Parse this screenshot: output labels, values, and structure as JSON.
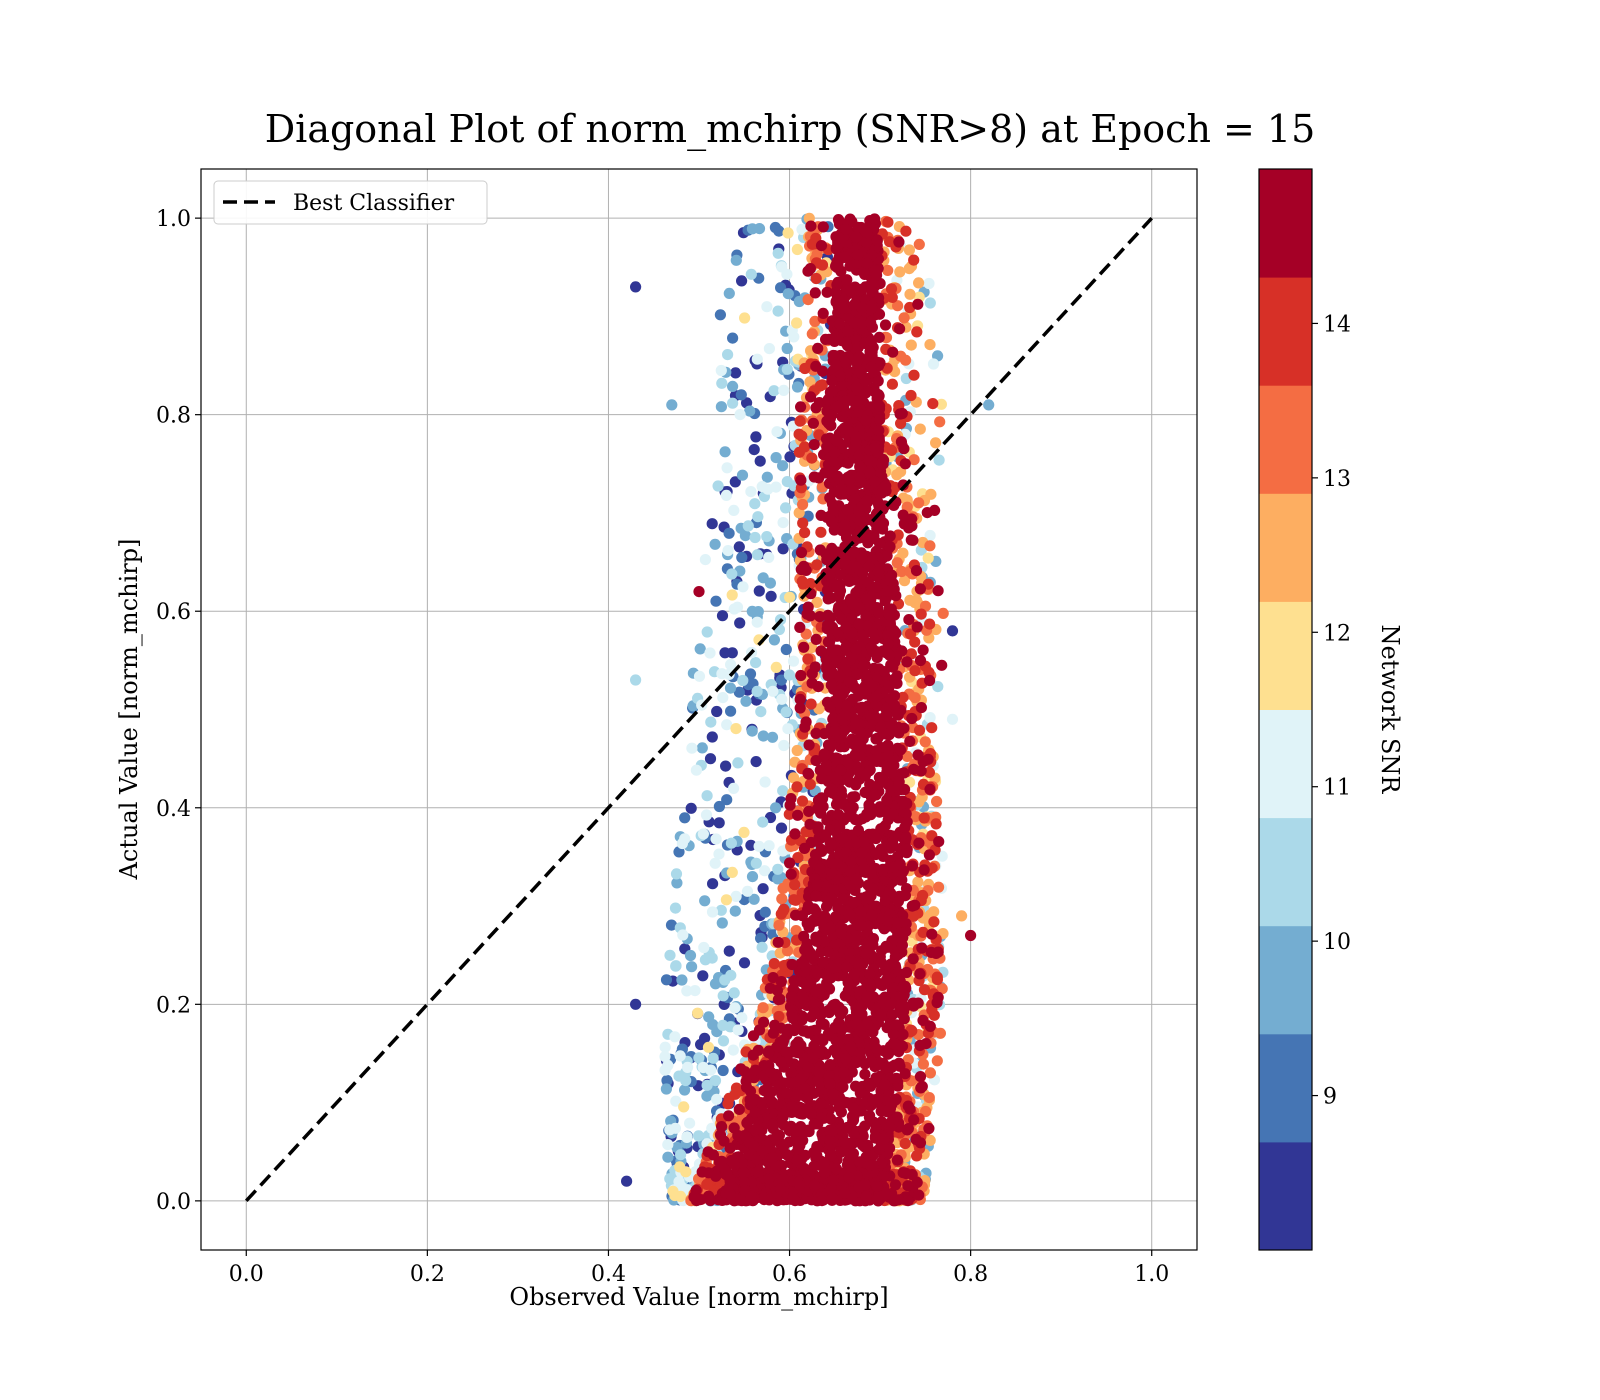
{
  "chart_data": {
    "type": "scatter",
    "title": "Diagonal Plot of norm_mchirp (SNR>8) at Epoch = 15",
    "xlabel": "Observed Value [norm_mchirp]",
    "ylabel": "Actual Value [norm_mchirp]",
    "xlim": [
      -0.05,
      1.05
    ],
    "ylim": [
      -0.05,
      1.05
    ],
    "xticks": [
      "0.0",
      "0.2",
      "0.4",
      "0.6",
      "0.8",
      "1.0"
    ],
    "yticks": [
      "0.0",
      "0.2",
      "0.4",
      "0.6",
      "0.8",
      "1.0"
    ],
    "grid": true,
    "legend": {
      "location": "upper-left",
      "entries": [
        {
          "label": "Best Classifier",
          "style": "black dashed line"
        }
      ]
    },
    "reference_line": {
      "label": "Best Classifier",
      "x": [
        0.0,
        1.0
      ],
      "y": [
        0.0,
        1.0
      ],
      "color": "#000000",
      "dash": "dashed"
    },
    "colorbar": {
      "label": "Network SNR",
      "colormap": "RdYlBu_r (discrete, 10 levels)",
      "range": [
        8,
        15
      ],
      "ticks": [
        "9",
        "10",
        "11",
        "12",
        "13",
        "14"
      ],
      "levels": [
        "#313695",
        "#4575b4",
        "#74add1",
        "#abd9e9",
        "#e0f3f8",
        "#fee090",
        "#fdae61",
        "#f46d43",
        "#d73027",
        "#a50026"
      ]
    },
    "point_cloud_density": [
      {
        "y": 0.0,
        "x_range": [
          0.47,
          0.75
        ],
        "core": [
          0.52,
          0.7
        ]
      },
      {
        "y": 0.1,
        "x_range": [
          0.46,
          0.76
        ],
        "core": [
          0.56,
          0.72
        ]
      },
      {
        "y": 0.2,
        "x_range": [
          0.46,
          0.77
        ],
        "core": [
          0.6,
          0.73
        ]
      },
      {
        "y": 0.3,
        "x_range": [
          0.47,
          0.77
        ],
        "core": [
          0.62,
          0.73
        ]
      },
      {
        "y": 0.4,
        "x_range": [
          0.48,
          0.77
        ],
        "core": [
          0.63,
          0.73
        ]
      },
      {
        "y": 0.5,
        "x_range": [
          0.49,
          0.77
        ],
        "core": [
          0.64,
          0.72
        ]
      },
      {
        "y": 0.6,
        "x_range": [
          0.5,
          0.77
        ],
        "core": [
          0.64,
          0.72
        ]
      },
      {
        "y": 0.7,
        "x_range": [
          0.51,
          0.76
        ],
        "core": [
          0.64,
          0.71
        ]
      },
      {
        "y": 0.8,
        "x_range": [
          0.52,
          0.77
        ],
        "core": [
          0.64,
          0.7
        ]
      },
      {
        "y": 0.9,
        "x_range": [
          0.52,
          0.76
        ],
        "core": [
          0.65,
          0.7
        ]
      },
      {
        "y": 1.0,
        "x_range": [
          0.55,
          0.76
        ],
        "core": [
          0.65,
          0.7
        ]
      }
    ],
    "notable_points": [
      {
        "x": 0.43,
        "y": 0.93,
        "snr": 8.1
      },
      {
        "x": 0.43,
        "y": 0.53,
        "snr": 10.6
      },
      {
        "x": 0.43,
        "y": 0.2,
        "snr": 8.1
      },
      {
        "x": 0.42,
        "y": 0.02,
        "snr": 8.3
      },
      {
        "x": 0.8,
        "y": 0.27,
        "snr": 14.8
      },
      {
        "x": 0.79,
        "y": 0.29,
        "snr": 12.8
      },
      {
        "x": 0.82,
        "y": 0.81,
        "snr": 9.8
      },
      {
        "x": 0.78,
        "y": 0.49,
        "snr": 11.3
      },
      {
        "x": 0.78,
        "y": 0.58,
        "snr": 8.2
      },
      {
        "x": 0.47,
        "y": 0.81,
        "snr": 9.4
      },
      {
        "x": 0.5,
        "y": 0.62,
        "snr": 14.5
      }
    ]
  }
}
